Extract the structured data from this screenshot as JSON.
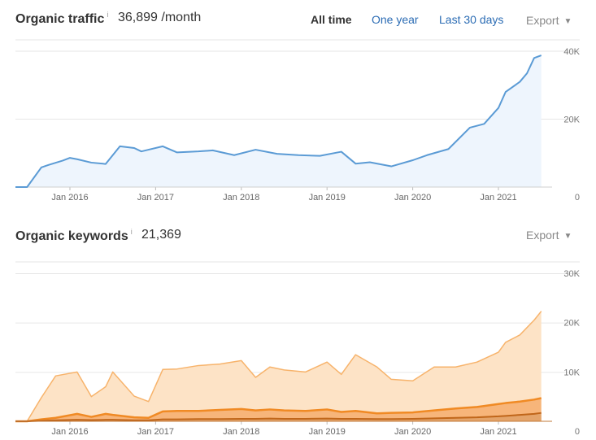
{
  "traffic": {
    "title": "Organic traffic",
    "info": "i",
    "value": "36,899 /month",
    "ranges": [
      "All time",
      "One year",
      "Last 30 days"
    ],
    "export_label": "Export",
    "caret": "▼"
  },
  "keywords": {
    "title": "Organic keywords",
    "info": "i",
    "value": "21,369",
    "export_label": "Export",
    "caret": "▼"
  },
  "colors": {
    "traffic_line": "#5b9bd5",
    "traffic_fill": "#eef5fd",
    "kw_light_fill": "#fde3c6",
    "kw_light_line": "#f7b36b",
    "kw_mid_fill": "#f7b57a",
    "kw_mid_line": "#f08a24",
    "kw_dark_fill": "#e4a46a",
    "kw_dark_line": "#c0661a",
    "grid": "#e6e6e6"
  },
  "chart_data": [
    {
      "type": "area",
      "title": "Organic traffic",
      "xlabel": "",
      "ylabel": "",
      "x_ticks": [
        "Jan 2016",
        "Jan 2017",
        "Jan 2018",
        "Jan 2019",
        "Jan 2020",
        "Jan 2021"
      ],
      "y_ticks": [
        "40K",
        "20K",
        "0"
      ],
      "ylim": [
        0,
        40000
      ],
      "grid": true,
      "series": [
        {
          "x": [
            "2015-01",
            "2015-07",
            "2015-09",
            "2015-10",
            "2015-12",
            "2016-01",
            "2016-02",
            "2016-04",
            "2016-06",
            "2016-08",
            "2016-10",
            "2016-11",
            "2016-12",
            "2017-02",
            "2017-04",
            "2017-07",
            "2017-09",
            "2017-12",
            "2018-03",
            "2018-06",
            "2018-09",
            "2018-12",
            "2019-03",
            "2019-05",
            "2019-07",
            "2019-10",
            "2020-01",
            "2020-03",
            "2020-06",
            "2020-09",
            "2020-11",
            "2021-01",
            "2021-02",
            "2021-04",
            "2021-05",
            "2021-06",
            "2021-07"
          ],
          "values": [
            0,
            0,
            5800,
            6500,
            7800,
            8600,
            8200,
            7200,
            6800,
            12000,
            11500,
            10500,
            11000,
            12000,
            10200,
            10500,
            10800,
            9400,
            11000,
            9800,
            9400,
            9200,
            10400,
            6900,
            7300,
            6100,
            7900,
            9400,
            11200,
            17500,
            18600,
            23300,
            28000,
            31000,
            33500,
            38000,
            38800
          ]
        }
      ]
    },
    {
      "type": "area",
      "title": "Organic keywords",
      "xlabel": "",
      "ylabel": "",
      "x_ticks": [
        "Jan 2016",
        "Jan 2017",
        "Jan 2018",
        "Jan 2019",
        "Jan 2020",
        "Jan 2021"
      ],
      "y_ticks": [
        "30K",
        "20K",
        "10K",
        "0"
      ],
      "ylim": [
        0,
        30000
      ],
      "grid": true,
      "x": [
        "2015-01",
        "2015-07",
        "2015-09",
        "2015-11",
        "2016-02",
        "2016-04",
        "2016-06",
        "2016-07",
        "2016-10",
        "2016-12",
        "2017-02",
        "2017-04",
        "2017-07",
        "2017-10",
        "2018-01",
        "2018-03",
        "2018-05",
        "2018-07",
        "2018-10",
        "2019-01",
        "2019-03",
        "2019-05",
        "2019-08",
        "2019-10",
        "2020-01",
        "2020-04",
        "2020-07",
        "2020-10",
        "2021-01",
        "2021-02",
        "2021-04",
        "2021-06",
        "2021-07"
      ],
      "series": [
        {
          "values": [
            0,
            0,
            4800,
            9200,
            10000,
            5000,
            7000,
            10000,
            5100,
            4000,
            10500,
            10600,
            11300,
            11600,
            12300,
            8900,
            11000,
            10400,
            10000,
            12000,
            9500,
            13500,
            11000,
            8500,
            8200,
            11000,
            11000,
            12000,
            14000,
            16000,
            17500,
            20500,
            22300
          ]
        },
        {
          "values": [
            0,
            0,
            400,
            700,
            1500,
            900,
            1500,
            1300,
            800,
            700,
            2000,
            2100,
            2100,
            2300,
            2500,
            2200,
            2400,
            2200,
            2100,
            2400,
            1900,
            2100,
            1600,
            1700,
            1800,
            2200,
            2600,
            2900,
            3500,
            3700,
            4000,
            4400,
            4700
          ]
        },
        {
          "values": [
            0,
            0,
            100,
            200,
            300,
            250,
            300,
            300,
            200,
            200,
            400,
            400,
            450,
            450,
            500,
            500,
            550,
            500,
            500,
            550,
            500,
            500,
            450,
            450,
            500,
            600,
            700,
            800,
            1000,
            1100,
            1300,
            1500,
            1700
          ]
        }
      ]
    }
  ]
}
